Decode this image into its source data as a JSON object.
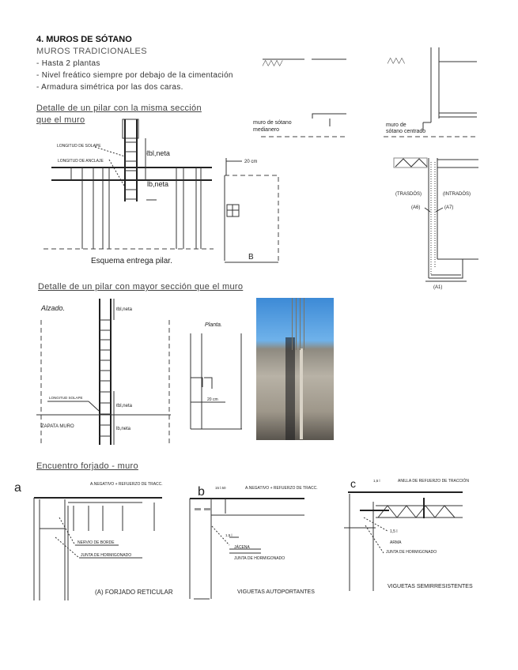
{
  "header": {
    "title": "4. MUROS DE SÓTANO",
    "subtitle": "MUROS TRADICIONALES",
    "bullets": [
      "- Hasta 2 plantas",
      "- Nivel freático siempre por debajo de la cimentación",
      "- Armadura simétrica por las dos caras."
    ]
  },
  "section1": {
    "title_line1": "Detalle de un pilar con la misma sección",
    "title_line2": "que el muro",
    "label_solape": "LONGITUD DE SOLAPE",
    "label_anclaje": "LONGITUD DE ANCLAJE",
    "lbl_neta": "ℓbl,neta",
    "lb_neta": "lb,neta",
    "dim_20": "20 cm",
    "dim_b": "B",
    "caption": "Esquema entrega pilar."
  },
  "wall_types": {
    "medianero_line1": "muro de sótano",
    "medianero_line2": "medianero",
    "centrado_line1": "muro de",
    "centrado_line2": "sótano centrado",
    "accent": "#1a6fc4"
  },
  "wall_section": {
    "trasdos": "(TRASDÓS)",
    "intrados": "(INTRADÓS)",
    "a6": "(A6)",
    "a7": "(A7)",
    "a1": "(A1)"
  },
  "section2": {
    "title": "Detalle de un pilar con mayor sección que el muro",
    "alzado": "Alzado.",
    "planta": "Planta.",
    "lbl_neta_top": "ℓbl,neta",
    "lbl_neta_bottom": "ℓbl,neta",
    "lb_neta": "lb,neta",
    "longitud_solape": "LONGITUD SOLAPE",
    "zapata": "ZAPATA MURO",
    "dim_20": "20 cm"
  },
  "section3": {
    "title": "Encuentro forjado - muro",
    "a": {
      "letter": "a",
      "negativo": "A.NEGATIVO + REFUERZO DE TRACC.",
      "nervio": "NERVIO DE BORDE",
      "junta": "JUNTA DE HORMIGONADO",
      "caption": "(A) FORJADO RETICULAR"
    },
    "b": {
      "letter": "b",
      "dim": "15 l.50",
      "negativo": "A.NEGATIVO + REFUERZO DE TRACC.",
      "lap": "1,5 l",
      "jacena": "JÁCENA",
      "junta": "JUNTA DE HORMIGONADO",
      "caption": "VIGUETAS AUTOPORTANTES"
    },
    "c": {
      "letter": "c",
      "dim": "1,5 l",
      "anilla": "ANILLA DE REFUERZO DE TRACCIÓN",
      "lap": "1,5 l",
      "armadura": "ARMA",
      "junta": "JUNTA DE HORMIGONADO",
      "caption": "VIGUETAS SEMIRRESISTENTES"
    },
    "letter_color": "#1a6fc4"
  }
}
